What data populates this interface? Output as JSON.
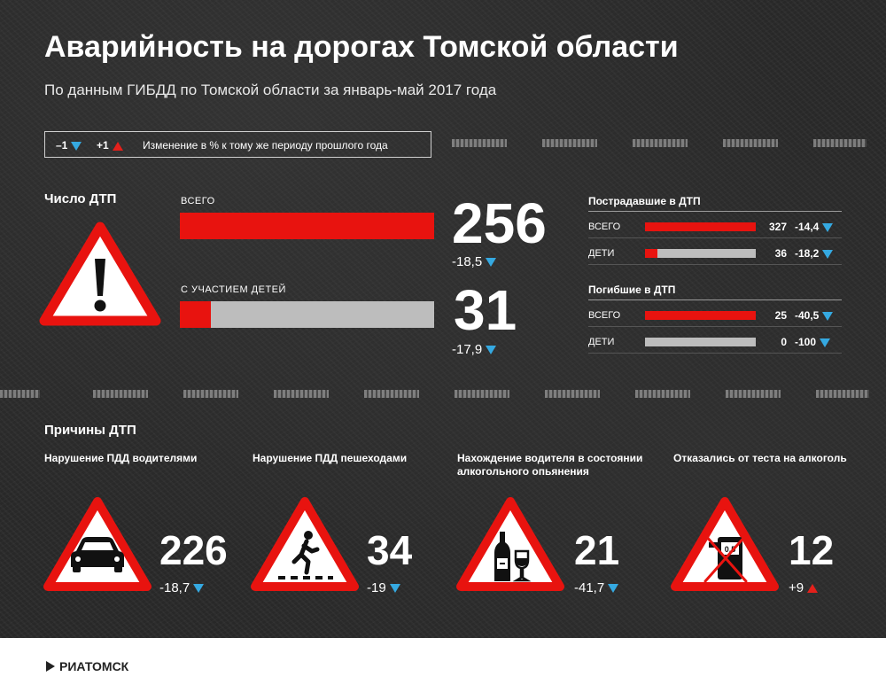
{
  "title": "Аварийность на дорогах Томской области",
  "subtitle": "По данным ГИБДД по Томской области за январь-май 2017 года",
  "legend": {
    "minus_label": "–1",
    "plus_label": "+1",
    "text": "Изменение в % к тому же периоду прошлого года"
  },
  "colors": {
    "red": "#e8130f",
    "gray": "#bdbdbd",
    "down_arrow": "#35a9e1",
    "up_arrow": "#e4201b"
  },
  "accidents": {
    "heading": "Число ДТП",
    "icon": "warning-exclamation-icon",
    "total": {
      "label": "ВСЕГО",
      "value": "256",
      "change": "-18,5",
      "direction": "down",
      "fill_fraction": 1.0
    },
    "children": {
      "label": "С УЧАСТИЕМ ДЕТЕЙ",
      "value": "31",
      "change": "-17,9",
      "direction": "down",
      "fill_fraction": 0.121
    }
  },
  "injured": {
    "heading": "Пострадавшие в ДТП",
    "rows": [
      {
        "label": "ВСЕГО",
        "value": "327",
        "change": "-14,4",
        "direction": "down",
        "fill_fraction": 1.0
      },
      {
        "label": "ДЕТИ",
        "value": "36",
        "change": "-18,2",
        "direction": "down",
        "fill_fraction": 0.11
      }
    ]
  },
  "killed": {
    "heading": "Погибшие в ДТП",
    "rows": [
      {
        "label": "ВСЕГО",
        "value": "25",
        "change": "-40,5",
        "direction": "down",
        "fill_fraction": 1.0
      },
      {
        "label": "ДЕТИ",
        "value": "0",
        "change": "-100",
        "direction": "down",
        "fill_fraction": 0.0
      }
    ]
  },
  "causes": {
    "heading": "Причины ДТП",
    "items": [
      {
        "title": "Нарушение ПДД водителями",
        "value": "226",
        "change": "-18,7",
        "direction": "down",
        "icon": "car-icon"
      },
      {
        "title": "Нарушение ПДД пешеходами",
        "value": "34",
        "change": "-19",
        "direction": "down",
        "icon": "pedestrian-icon"
      },
      {
        "title": "Нахождение водителя в состоянии алкогольного опьянения",
        "value": "21",
        "change": "-41,7",
        "direction": "down",
        "icon": "bottle-glass-icon"
      },
      {
        "title": "Отказались от теста на алкоголь",
        "value": "12",
        "change": "+9",
        "direction": "up",
        "icon": "crossed-breathalyzer-icon",
        "icon_text": "0,5"
      }
    ]
  },
  "footer": {
    "logo_text": "РИАТОМСК"
  }
}
